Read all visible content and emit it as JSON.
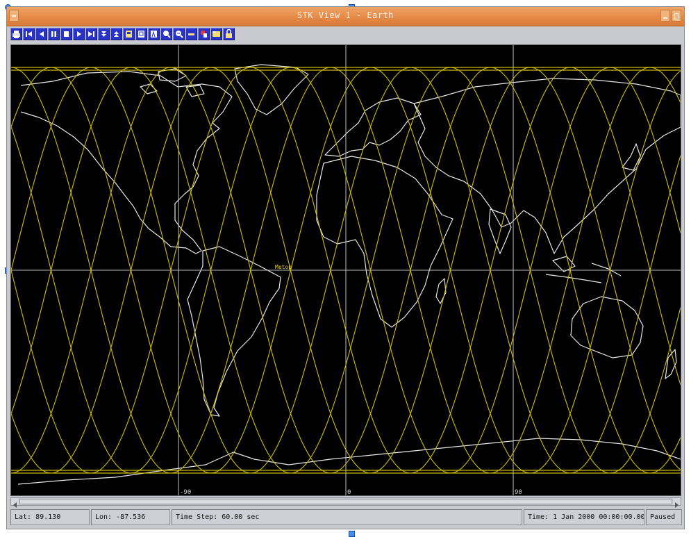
{
  "window": {
    "title": "STK View 1 - Earth"
  },
  "toolbar": {
    "buttons": [
      "print-icon",
      "step-back-icon",
      "reverse-icon",
      "pause-icon",
      "stop-icon",
      "play-icon",
      "step-forward-icon",
      "decrease-timestep-icon",
      "increase-timestep-icon",
      "home-view-icon",
      "zoom-box-icon",
      "pan-icon",
      "zoom-in-icon",
      "zoom-out-icon",
      "map-properties-icon",
      "object-icon",
      "folder-icon",
      "lock-icon"
    ]
  },
  "map": {
    "grid_labels": [
      "-90",
      "0",
      "90"
    ],
    "object_label": "Metop",
    "colors": {
      "background": "#000000",
      "coastline": "#e8e8e8",
      "ground_track": "#c9b800",
      "grid": "#bfbfbf"
    }
  },
  "status": {
    "lat": "Lat: 89.130",
    "lon": "Lon: -87.536",
    "time_step": "Time Step: 60.00 sec",
    "time": "Time:  1 Jan 2000 00:00:00.00",
    "state": "Paused"
  }
}
